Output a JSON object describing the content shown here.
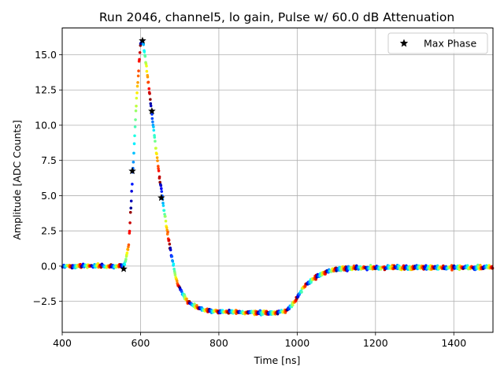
{
  "chart_data": {
    "type": "scatter",
    "title": "Run 2046, channel5, lo gain, Pulse w/ 60.0 dB Attenuation",
    "xlabel": "Time [ns]",
    "ylabel": "Amplitude [ADC Counts]",
    "xlim": [
      400,
      1500
    ],
    "ylim": [
      -4.7,
      16.9
    ],
    "xticks": [
      400,
      600,
      800,
      1000,
      1200,
      1400
    ],
    "xtick_labels": [
      "400",
      "600",
      "800",
      "1000",
      "1200",
      "1400"
    ],
    "yticks": [
      -2.5,
      0.0,
      2.5,
      5.0,
      7.5,
      10.0,
      12.5,
      15.0
    ],
    "ytick_labels": [
      "−2.5",
      "0.0",
      "2.5",
      "5.0",
      "7.5",
      "10.0",
      "12.5",
      "15.0"
    ],
    "grid": true,
    "legend": {
      "position": "top-right",
      "entries": [
        "Max Phase"
      ]
    },
    "pulse_shape": [
      [
        400,
        0.0
      ],
      [
        550,
        0.0
      ],
      [
        560,
        0.1
      ],
      [
        570,
        1.5
      ],
      [
        580,
        6.5
      ],
      [
        590,
        12.0
      ],
      [
        600,
        15.8
      ],
      [
        605,
        16.0
      ],
      [
        610,
        15.2
      ],
      [
        620,
        13.0
      ],
      [
        630,
        10.5
      ],
      [
        640,
        8.2
      ],
      [
        650,
        6.0
      ],
      [
        660,
        4.0
      ],
      [
        670,
        2.2
      ],
      [
        680,
        0.6
      ],
      [
        690,
        -0.8
      ],
      [
        700,
        -1.6
      ],
      [
        720,
        -2.5
      ],
      [
        740,
        -2.9
      ],
      [
        760,
        -3.1
      ],
      [
        800,
        -3.25
      ],
      [
        900,
        -3.3
      ],
      [
        950,
        -3.3
      ],
      [
        970,
        -3.2
      ],
      [
        985,
        -2.8
      ],
      [
        1000,
        -2.2
      ],
      [
        1020,
        -1.4
      ],
      [
        1040,
        -0.9
      ],
      [
        1060,
        -0.6
      ],
      [
        1080,
        -0.4
      ],
      [
        1100,
        -0.2
      ],
      [
        1150,
        -0.15
      ],
      [
        1200,
        -0.1
      ],
      [
        1500,
        -0.1
      ]
    ],
    "series": [
      {
        "name": "Max Phase",
        "marker": "star",
        "x": [
          557,
          579,
          605,
          629,
          653
        ],
        "y": [
          -0.2,
          6.75,
          16.0,
          11.0,
          4.85
        ]
      }
    ],
    "colormap": "jet"
  }
}
